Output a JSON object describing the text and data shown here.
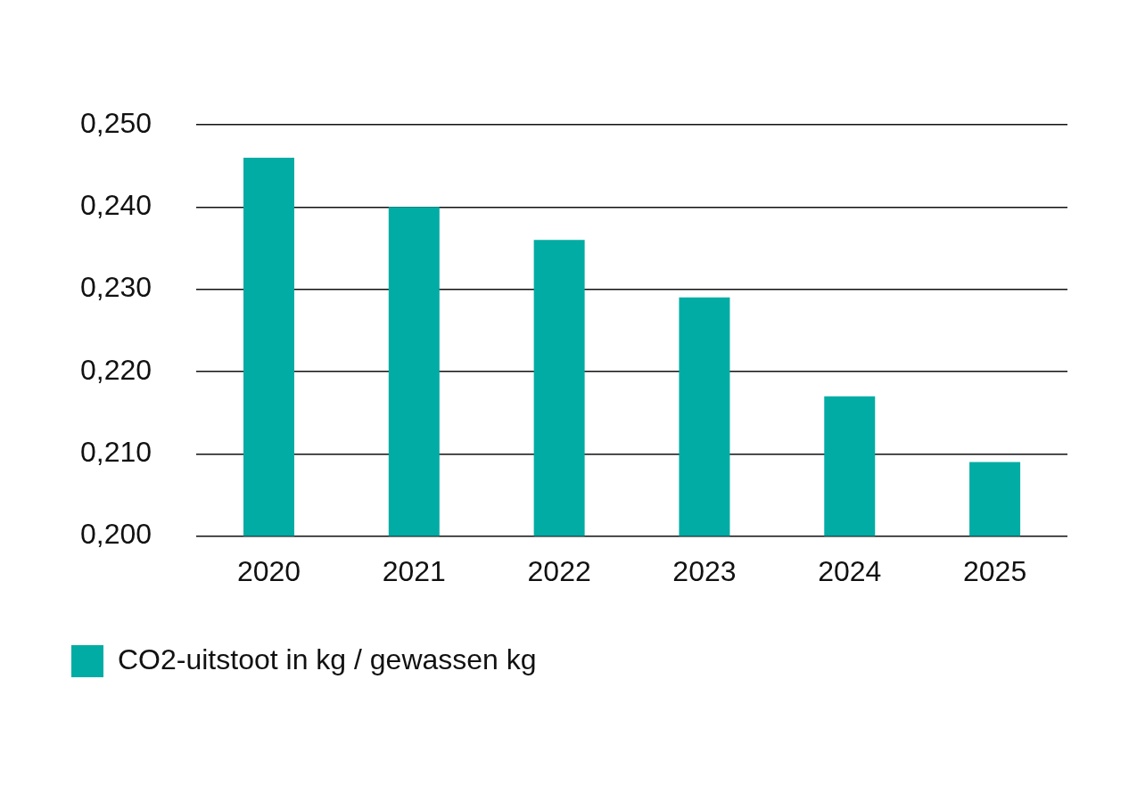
{
  "chart_data": {
    "type": "bar",
    "categories": [
      "2020",
      "2021",
      "2022",
      "2023",
      "2024",
      "2025"
    ],
    "series": [
      {
        "name": "CO2-uitstoot in kg / gewassen kg",
        "color": "#00aca4",
        "values": [
          0.246,
          0.24,
          0.236,
          0.229,
          0.217,
          0.209
        ]
      }
    ],
    "ylim": [
      0.2,
      0.25
    ],
    "yticks": [
      {
        "value": 0.2,
        "label": "0,200"
      },
      {
        "value": 0.21,
        "label": "0,210"
      },
      {
        "value": 0.22,
        "label": "0,220"
      },
      {
        "value": 0.23,
        "label": "0,230"
      },
      {
        "value": 0.24,
        "label": "0,240"
      },
      {
        "value": 0.25,
        "label": "0,250"
      }
    ],
    "grid": "y",
    "legend": "bottom left"
  }
}
